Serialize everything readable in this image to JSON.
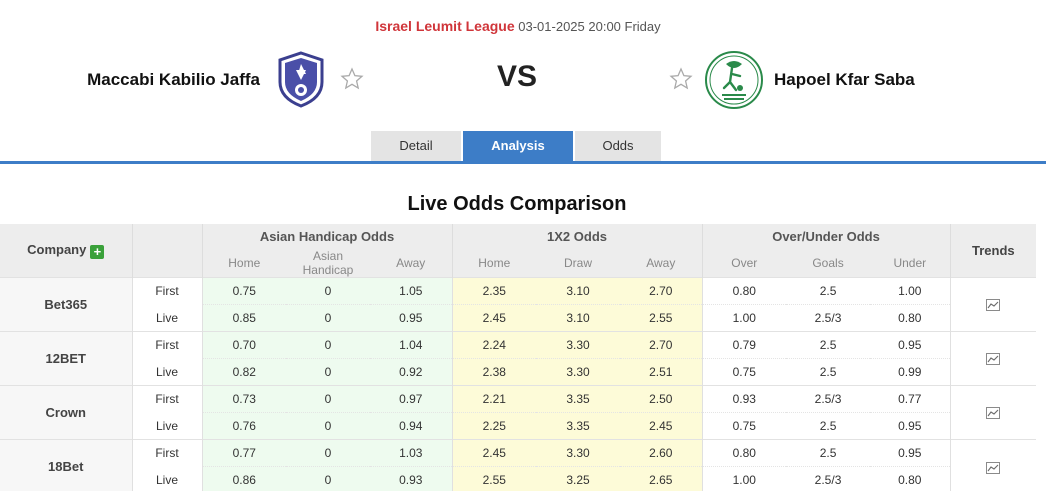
{
  "match": {
    "league": "Israel Leumit League",
    "datetime": "03-01-2025 20:00 Friday",
    "home_team": "Maccabi Kabilio Jaffa",
    "away_team": "Hapoel Kfar Saba",
    "vs": "VS"
  },
  "tabs": [
    {
      "label": "Detail",
      "active": false
    },
    {
      "label": "Analysis",
      "active": true
    },
    {
      "label": "Odds",
      "active": false
    }
  ],
  "section_title": "Live Odds Comparison",
  "table": {
    "company_header": "Company",
    "trends_header": "Trends",
    "groups": {
      "asian": "Asian Handicap Odds",
      "x12": "1X2 Odds",
      "ou": "Over/Under Odds"
    },
    "subheaders": {
      "asian": [
        "Home",
        "Asian Handicap",
        "Away"
      ],
      "x12": [
        "Home",
        "Draw",
        "Away"
      ],
      "ou": [
        "Over",
        "Goals",
        "Under"
      ]
    },
    "companies": [
      {
        "name": "Bet365",
        "rows": [
          {
            "type": "First",
            "ah": [
              "0.75",
              "0",
              "1.05"
            ],
            "x12": [
              "2.35",
              "3.10",
              "2.70"
            ],
            "ou": [
              "0.80",
              "2.5",
              "1.00"
            ]
          },
          {
            "type": "Live",
            "ah": [
              "0.85",
              "0",
              "0.95"
            ],
            "x12": [
              "2.45",
              "3.10",
              "2.55"
            ],
            "ou": [
              "1.00",
              "2.5/3",
              "0.80"
            ]
          }
        ]
      },
      {
        "name": "12BET",
        "rows": [
          {
            "type": "First",
            "ah": [
              "0.70",
              "0",
              "1.04"
            ],
            "x12": [
              "2.24",
              "3.30",
              "2.70"
            ],
            "ou": [
              "0.79",
              "2.5",
              "0.95"
            ]
          },
          {
            "type": "Live",
            "ah": [
              "0.82",
              "0",
              "0.92"
            ],
            "x12": [
              "2.38",
              "3.30",
              "2.51"
            ],
            "ou": [
              "0.75",
              "2.5",
              "0.99"
            ]
          }
        ]
      },
      {
        "name": "Crown",
        "rows": [
          {
            "type": "First",
            "ah": [
              "0.73",
              "0",
              "0.97"
            ],
            "x12": [
              "2.21",
              "3.35",
              "2.50"
            ],
            "ou": [
              "0.93",
              "2.5/3",
              "0.77"
            ]
          },
          {
            "type": "Live",
            "ah": [
              "0.76",
              "0",
              "0.94"
            ],
            "x12": [
              "2.25",
              "3.35",
              "2.45"
            ],
            "ou": [
              "0.75",
              "2.5",
              "0.95"
            ]
          }
        ]
      },
      {
        "name": "18Bet",
        "rows": [
          {
            "type": "First",
            "ah": [
              "0.77",
              "0",
              "1.03"
            ],
            "x12": [
              "2.45",
              "3.30",
              "2.60"
            ],
            "ou": [
              "0.80",
              "2.5",
              "0.95"
            ]
          },
          {
            "type": "Live",
            "ah": [
              "0.86",
              "0",
              "0.93"
            ],
            "x12": [
              "2.55",
              "3.25",
              "2.65"
            ],
            "ou": [
              "1.00",
              "2.5/3",
              "0.80"
            ]
          }
        ]
      }
    ]
  },
  "icons": {
    "favorite": "star-outline-icon",
    "trend": "chart-trend-icon",
    "add": "plus-icon"
  },
  "colors": {
    "league": "#d0353a",
    "accent": "#3d7dc7",
    "asian_bg": "#eefbef",
    "x12_bg": "#fdfbd8",
    "add_green": "#3aa13a"
  }
}
